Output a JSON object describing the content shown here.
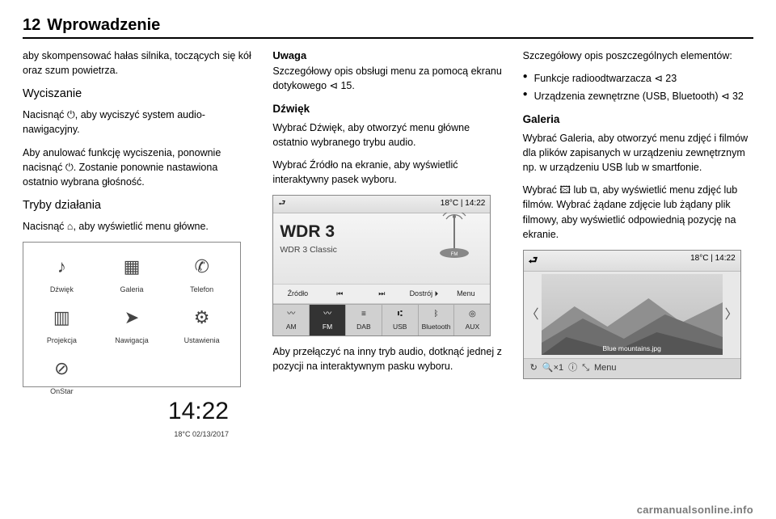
{
  "header": {
    "page_number": "12",
    "title": "Wprowadzenie"
  },
  "col1": {
    "p1": "aby skompensować hałas silnika, toczących się kół oraz szum powietrza.",
    "h_wyciszanie": "Wyciszanie",
    "p2a": "Nacisnąć ",
    "p2sym": "⏻",
    "p2b": ", aby wyciszyć system audio-nawigacyjny.",
    "p3a": "Aby anulować funkcję wyciszenia, ponownie nacisnąć ",
    "p3sym": "⏻",
    "p3b": ". Zostanie ponownie nastawiona ostatnio wybrana głośność.",
    "h_tryby": "Tryby działania",
    "p4a": "Nacisnąć ",
    "p4sym": "⌂",
    "p4b": ", aby wyświetlić menu główne.",
    "home": {
      "icons": [
        {
          "sym": "♪",
          "label": "Dźwięk"
        },
        {
          "sym": "▦",
          "label": "Galeria"
        },
        {
          "sym": "✆",
          "label": "Telefon"
        },
        {
          "sym": "▥",
          "label": "Projekcja"
        },
        {
          "sym": "➤",
          "label": "Nawigacja"
        },
        {
          "sym": "⚙",
          "label": "Ustawienia"
        },
        {
          "sym": "⊘",
          "label": "OnStar"
        }
      ],
      "clock": "14:22",
      "temp_date": "18°C    02/13/2017"
    }
  },
  "col2": {
    "note_label": "Uwaga",
    "note_text": "Szczegółowy opis obsługi menu za pomocą ekranu dotykowego ⊲ 15.",
    "h_dzwiek": "Dźwięk",
    "p1": "Wybrać Dźwięk, aby otworzyć menu główne ostatnio wybranego trybu audio.",
    "p2": "Wybrać Źródło na ekranie, aby wyświetlić interaktywny pasek wyboru.",
    "radio": {
      "back": "⮐",
      "temp": "18°C",
      "time": "14:22",
      "title": "WDR 3",
      "subtitle": "WDR 3 Classic",
      "controls": [
        "Źródło",
        "⏮",
        "⏭",
        "Dostrój ⏵",
        "Menu"
      ],
      "sources": [
        {
          "ico": "〰",
          "label": "AM",
          "active": false
        },
        {
          "ico": "〰",
          "label": "FM",
          "active": true
        },
        {
          "ico": "≡",
          "label": "DAB",
          "active": false
        },
        {
          "ico": "⑆",
          "label": "USB",
          "active": false
        },
        {
          "ico": "ᛒ",
          "label": "Bluetooth",
          "active": false
        },
        {
          "ico": "◎",
          "label": "AUX",
          "active": false
        }
      ]
    },
    "p3": "Aby przełączyć na inny tryb audio, dotknąć jednej z pozycji na interaktywnym pasku wyboru."
  },
  "col3": {
    "p1": "Szczegółowy opis poszczególnych elementów:",
    "bullets": [
      "Funkcje radioodtwarzacza ⊲ 23",
      "Urządzenia zewnętrzne (USB, Bluetooth) ⊲ 32"
    ],
    "h_galeria": "Galeria",
    "p2": "Wybrać Galeria, aby otworzyć menu zdjęć i filmów dla plików zapisanych w urządzeniu zewnętrznym np. w urządzeniu USB lub w smartfonie.",
    "p3": "Wybrać 🖾 lub ⧉, aby wyświetlić menu zdjęć lub filmów. Wybrać żądane zdjęcie lub żądany plik filmowy, aby wyświetlić odpowiednią pozycję na ekranie.",
    "gallery": {
      "back": "⮐",
      "temp": "18°C",
      "time": "14:22",
      "filename": "Blue mountains.jpg",
      "bottom": [
        "↻",
        "🔍×1",
        "ⓘ",
        "⤡",
        "Menu"
      ],
      "mountains": {
        "bg_top": "#d7d7d7",
        "bg_bot": "#bcbcbc",
        "l1": "#8f8f8f",
        "l2": "#6e6e6e",
        "l3": "#555"
      }
    }
  },
  "footer": "carmanualsonline.info"
}
